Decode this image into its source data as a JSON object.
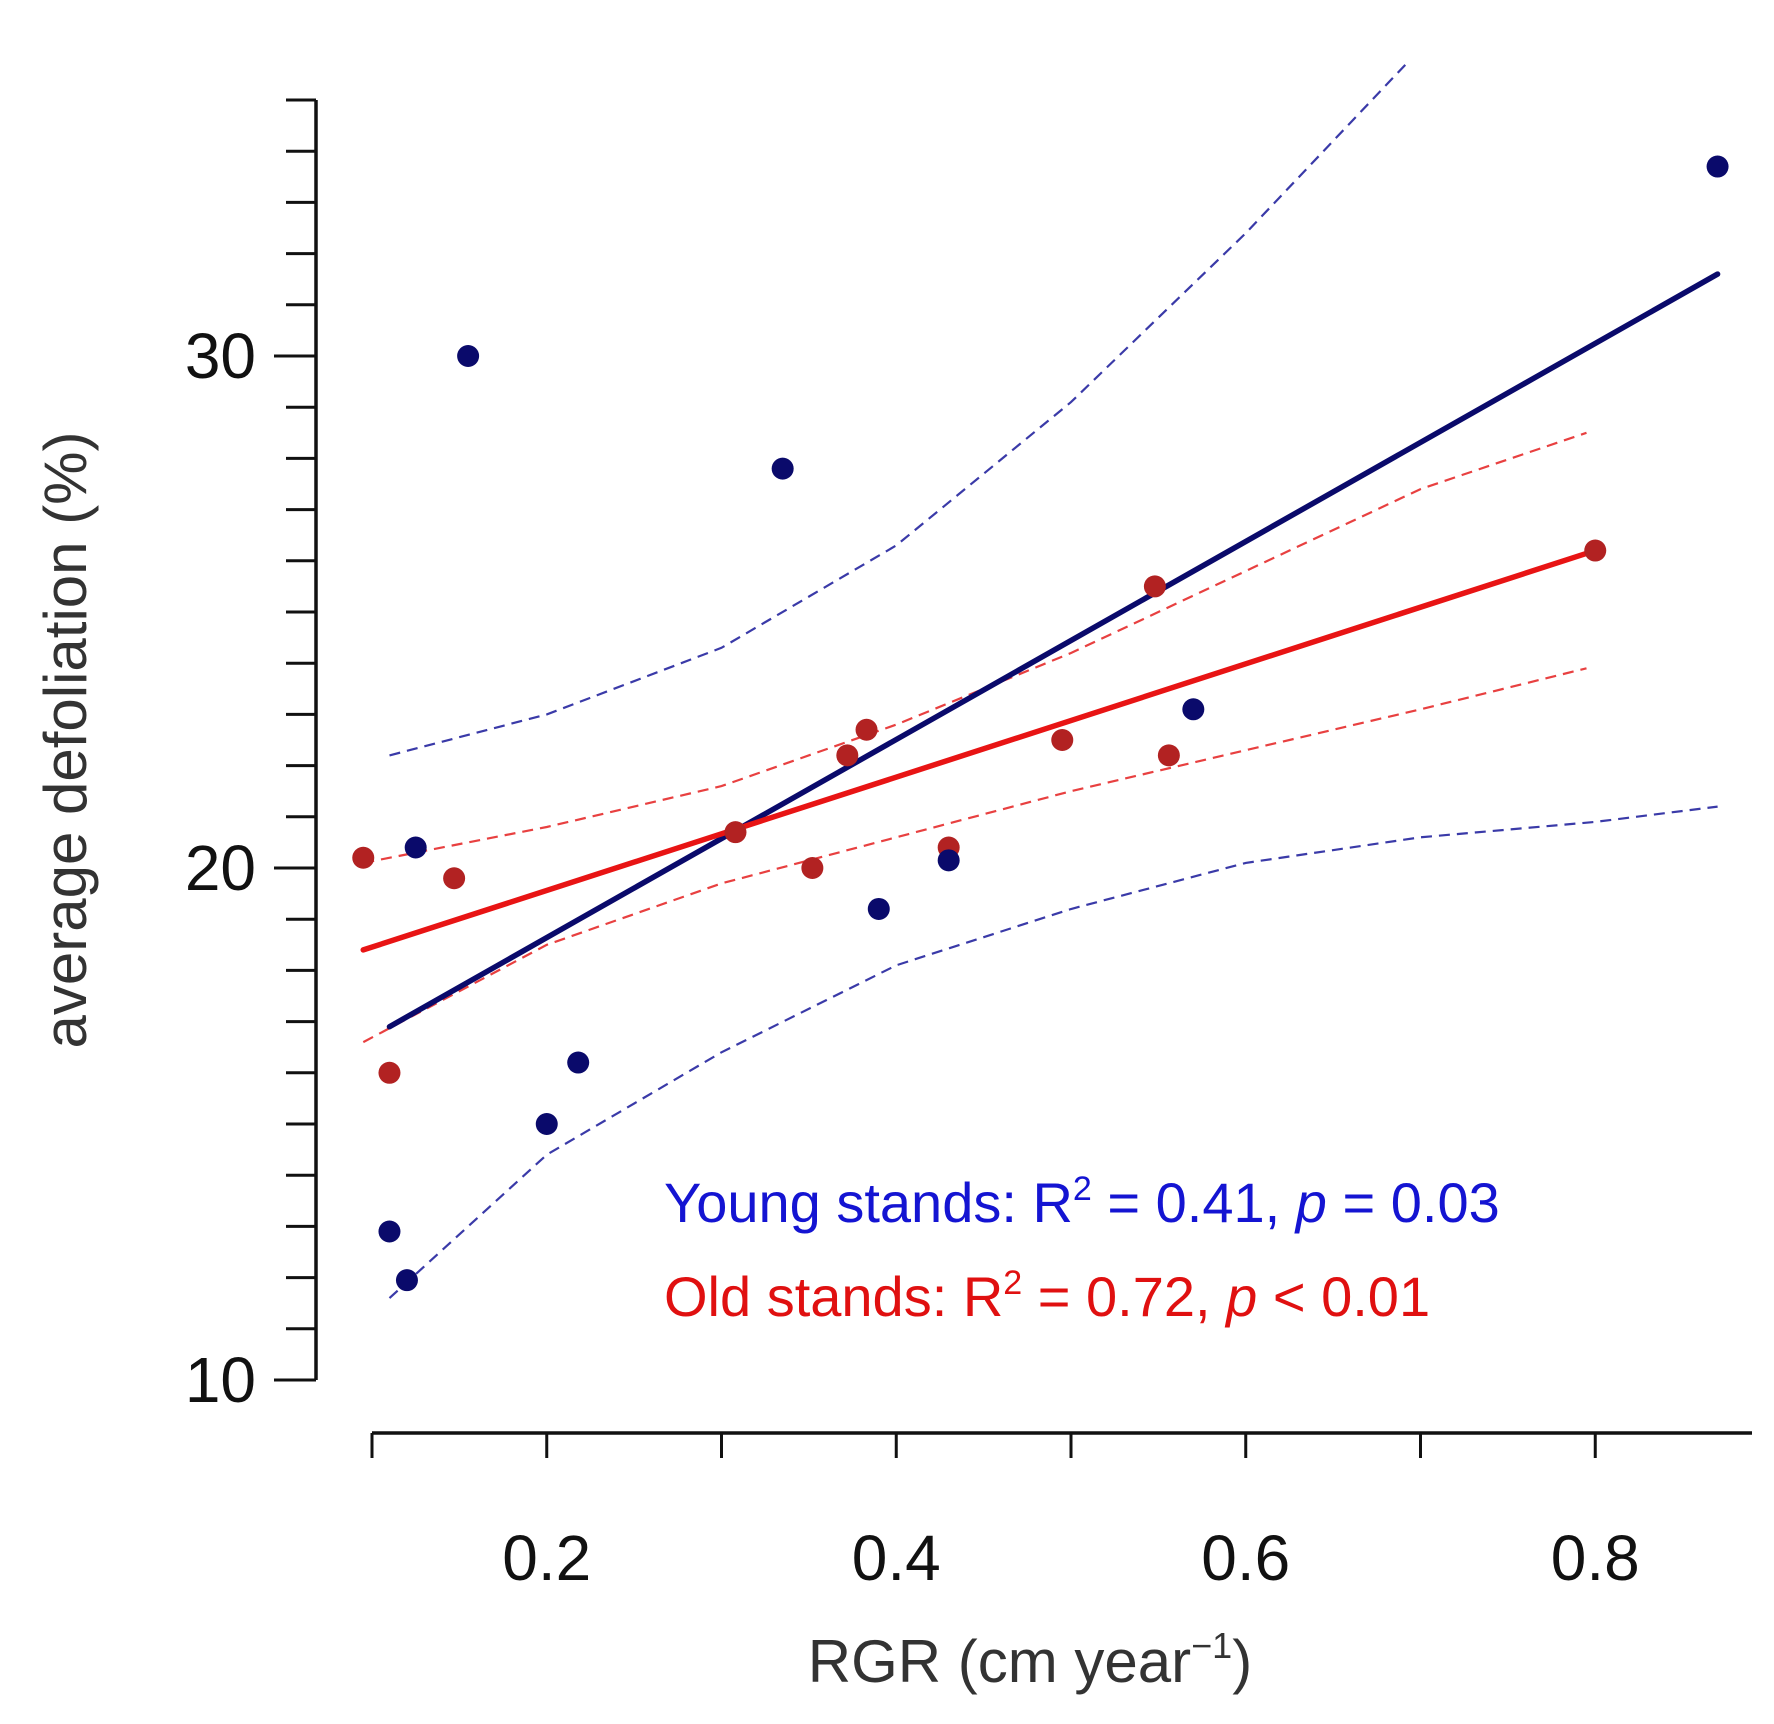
{
  "chart_data": {
    "type": "scatter",
    "title": "",
    "xlabel": "RGR (cm  year",
    "xlabel_sup": "−1",
    "xlabel_close": ")",
    "ylabel": "average defoliation (%)",
    "xlim": [
      0.1,
      0.9
    ],
    "ylim": [
      10,
      35
    ],
    "x_ticks": [
      0.1,
      0.2,
      0.3,
      0.4,
      0.5,
      0.6,
      0.7,
      0.8
    ],
    "x_tick_labels": [
      "0.2",
      "0.4",
      "0.6",
      "0.8"
    ],
    "x_tick_label_values": [
      0.2,
      0.4,
      0.6,
      0.8
    ],
    "y_ticks": [
      10,
      11,
      12,
      13,
      14,
      15,
      16,
      17,
      18,
      19,
      20,
      21,
      22,
      23,
      24,
      25,
      26,
      27,
      28,
      29,
      30,
      31,
      32,
      33,
      34,
      35
    ],
    "y_tick_labels": [
      "10",
      "20",
      "30"
    ],
    "y_tick_label_values": [
      10,
      20,
      30
    ],
    "series": [
      {
        "name": "Young stands",
        "color": "#0a0a6b",
        "points": [
          {
            "x": 0.11,
            "y": 12.9
          },
          {
            "x": 0.12,
            "y": 11.95
          },
          {
            "x": 0.125,
            "y": 20.4
          },
          {
            "x": 0.155,
            "y": 30.0
          },
          {
            "x": 0.2,
            "y": 15.0
          },
          {
            "x": 0.218,
            "y": 16.2
          },
          {
            "x": 0.335,
            "y": 27.8
          },
          {
            "x": 0.39,
            "y": 19.2
          },
          {
            "x": 0.43,
            "y": 20.15
          },
          {
            "x": 0.57,
            "y": 23.1
          },
          {
            "x": 0.87,
            "y": 33.7
          }
        ],
        "fit": [
          [
            0.11,
            16.9
          ],
          [
            0.87,
            31.6
          ]
        ],
        "ci_upper": [
          [
            0.11,
            22.2
          ],
          [
            0.2,
            23.0
          ],
          [
            0.3,
            24.3
          ],
          [
            0.4,
            26.3
          ],
          [
            0.5,
            29.1
          ],
          [
            0.6,
            32.4
          ],
          [
            0.7,
            36.0
          ]
        ],
        "ci_lower": [
          [
            0.11,
            11.6
          ],
          [
            0.2,
            14.4
          ],
          [
            0.3,
            16.4
          ],
          [
            0.4,
            18.1
          ],
          [
            0.5,
            19.2
          ],
          [
            0.6,
            20.1
          ],
          [
            0.7,
            20.6
          ],
          [
            0.8,
            20.9
          ],
          [
            0.87,
            21.2
          ]
        ]
      },
      {
        "name": "Old stands",
        "color": "#b22222",
        "points": [
          {
            "x": 0.095,
            "y": 20.2
          },
          {
            "x": 0.11,
            "y": 16.0
          },
          {
            "x": 0.147,
            "y": 19.8
          },
          {
            "x": 0.308,
            "y": 20.7
          },
          {
            "x": 0.352,
            "y": 20.0
          },
          {
            "x": 0.372,
            "y": 22.2
          },
          {
            "x": 0.383,
            "y": 22.7
          },
          {
            "x": 0.43,
            "y": 20.4
          },
          {
            "x": 0.495,
            "y": 22.5
          },
          {
            "x": 0.548,
            "y": 25.5
          },
          {
            "x": 0.556,
            "y": 22.2
          },
          {
            "x": 0.8,
            "y": 26.2
          }
        ],
        "fit": [
          [
            0.095,
            18.4
          ],
          [
            0.8,
            26.2
          ]
        ],
        "ci_upper": [
          [
            0.095,
            20.1
          ],
          [
            0.2,
            20.8
          ],
          [
            0.3,
            21.6
          ],
          [
            0.4,
            22.8
          ],
          [
            0.5,
            24.2
          ],
          [
            0.6,
            25.8
          ],
          [
            0.7,
            27.4
          ],
          [
            0.795,
            28.5
          ]
        ],
        "ci_lower": [
          [
            0.095,
            16.6
          ],
          [
            0.2,
            18.5
          ],
          [
            0.3,
            19.7
          ],
          [
            0.4,
            20.6
          ],
          [
            0.5,
            21.5
          ],
          [
            0.6,
            22.3
          ],
          [
            0.7,
            23.1
          ],
          [
            0.795,
            23.9
          ]
        ]
      }
    ],
    "annotations": [
      {
        "label": "Young stands: R",
        "sup": "2",
        "eq": " = 0.41, ",
        "p": "p",
        "stat": " = 0.03",
        "color": "#1414d2"
      },
      {
        "label": "Old stands: R",
        "sup": "2",
        "eq": " = 0.72, ",
        "p": "p",
        "stat": " < 0.01",
        "color": "#e01010"
      }
    ],
    "grid": false,
    "legend": "none"
  }
}
